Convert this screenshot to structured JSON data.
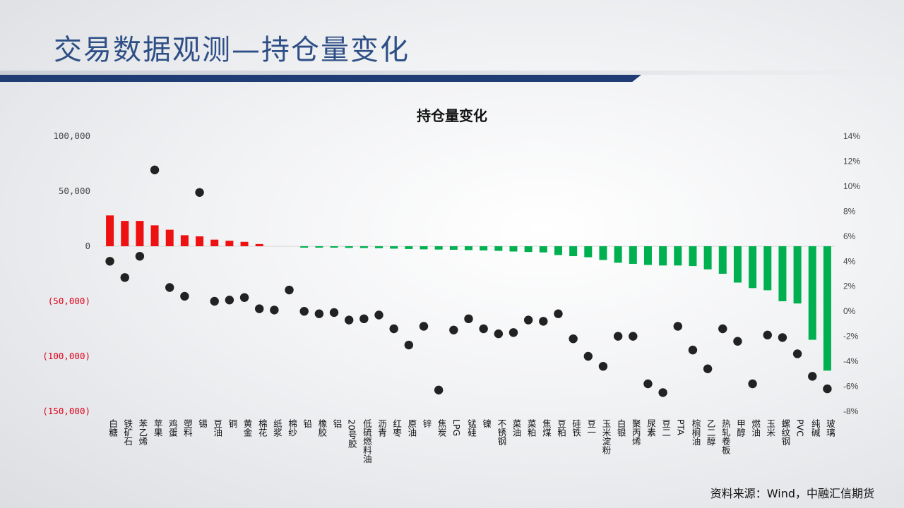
{
  "header": {
    "title": "交易数据观测—持仓量变化"
  },
  "source": "资料来源：Wind，中融汇信期货",
  "colors": {
    "positive": "#ee1111",
    "negative": "#00b050",
    "dot": "#222222",
    "negative_tick": "#e0001a"
  },
  "chart_data": {
    "type": "bar",
    "title": "持仓量变化",
    "left_ticks": [
      "100,000",
      "50,000",
      "0",
      "(50,000)",
      "(100,000)",
      "(150,000)"
    ],
    "right_ticks": [
      "14%",
      "12%",
      "10%",
      "8%",
      "6%",
      "4%",
      "2%",
      "0%",
      "-2%",
      "-4%",
      "-6%",
      "-8%"
    ],
    "ylim": [
      -150000,
      100000
    ],
    "y2lim": [
      -0.08,
      0.14
    ],
    "categories": [
      "白糖",
      "铁矿石",
      "苯乙烯",
      "苹果",
      "鸡蛋",
      "塑料",
      "锡",
      "豆油",
      "铜",
      "黄金",
      "棉花",
      "纸浆",
      "棉纱",
      "铅",
      "橡胶",
      "铝",
      "20号胶",
      "低硫燃料油",
      "沥青",
      "红枣",
      "原油",
      "锌",
      "焦炭",
      "LPG",
      "锰硅",
      "镍",
      "不锈钢",
      "菜油",
      "菜粕",
      "焦煤",
      "豆粕",
      "硅铁",
      "豆一",
      "玉米淀粉",
      "白银",
      "聚丙烯",
      "尿素",
      "豆二",
      "PTA",
      "棕榈油",
      "乙二醇",
      "热轧卷板",
      "甲醇",
      "燃油",
      "玉米",
      "螺纹钢",
      "PVC",
      "纯碱",
      "玻璃"
    ],
    "series": [
      {
        "type": "bar",
        "values": [
          28000,
          23000,
          23000,
          19000,
          15000,
          10000,
          9000,
          6000,
          5000,
          4000,
          2000,
          0,
          0,
          -1000,
          -1200,
          -1300,
          -1500,
          -1600,
          -1800,
          -2200,
          -2500,
          -2800,
          -3000,
          -3200,
          -3500,
          -3800,
          -4200,
          -4800,
          -5200,
          -5600,
          -8000,
          -9000,
          -10000,
          -12500,
          -15000,
          -16000,
          -17000,
          -17500,
          -17500,
          -18000,
          -21000,
          -25000,
          -33000,
          -38000,
          -40000,
          -50000,
          -52000,
          -85000,
          -113000
        ]
      },
      {
        "type": "scatter",
        "axis": "right",
        "values": [
          0.04,
          0.027,
          0.044,
          0.113,
          0.019,
          0.012,
          0.095,
          0.008,
          0.009,
          0.011,
          0.002,
          0.001,
          0.017,
          0.0,
          -0.002,
          -0.001,
          -0.007,
          -0.006,
          -0.003,
          -0.014,
          -0.027,
          -0.012,
          -0.063,
          -0.015,
          -0.006,
          -0.014,
          -0.018,
          -0.017,
          -0.007,
          -0.008,
          -0.002,
          -0.022,
          -0.036,
          -0.044,
          -0.02,
          -0.02,
          -0.058,
          -0.065,
          -0.012,
          -0.031,
          -0.046,
          -0.014,
          -0.024,
          -0.058,
          -0.019,
          -0.021,
          -0.034,
          -0.052,
          -0.062
        ]
      }
    ]
  }
}
